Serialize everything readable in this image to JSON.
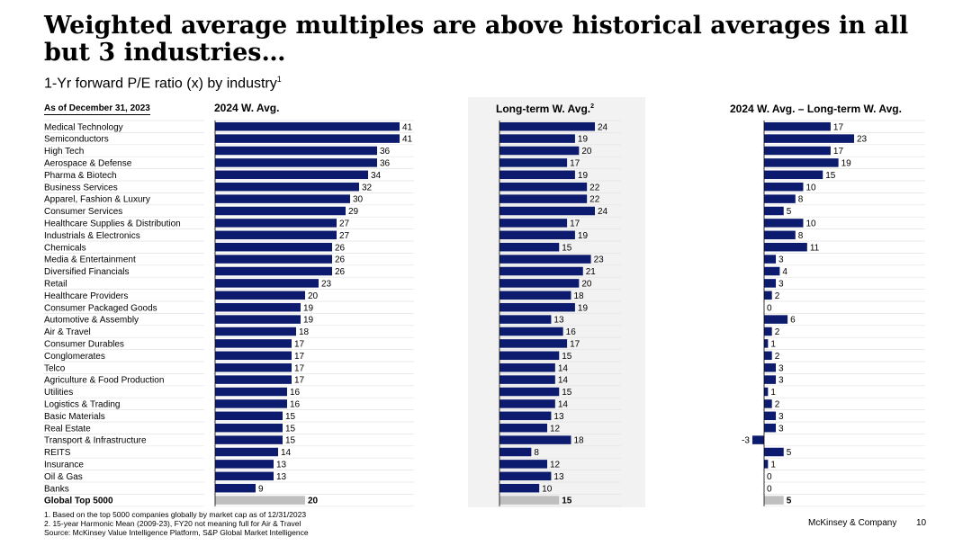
{
  "header": {
    "title": "Weighted average multiples are above historical averages in all but 3 industries…",
    "subtitle": "1-Yr forward P/E ratio (x) by industry",
    "subtitle_sup": "1",
    "as_of": "As of December 31, 2023"
  },
  "columns": {
    "col1": "2024 W. Avg.",
    "col2": "Long-term W. Avg.",
    "col2_sup": "2",
    "col3": "2024 W. Avg. – Long-term W. Avg."
  },
  "colors": {
    "bar": "#0d1b6e",
    "total": "#bfbfbf",
    "shade": "#f2f2f2"
  },
  "chart_data": {
    "type": "bar",
    "orientation": "horizontal",
    "categories": [
      "Medical Technology",
      "Semiconductors",
      "High Tech",
      "Aerospace & Defense",
      "Pharma & Biotech",
      "Business Services",
      "Apparel, Fashion & Luxury",
      "Consumer Services",
      "Healthcare Supplies & Distribution",
      "Industrials & Electronics",
      "Chemicals",
      "Media & Entertainment",
      "Diversified Financials",
      "Retail",
      "Healthcare Providers",
      "Consumer Packaged Goods",
      "Automotive & Assembly",
      "Air & Travel",
      "Consumer Durables",
      "Conglomerates",
      "Telco",
      "Agriculture & Food Production",
      "Utilities",
      "Logistics & Trading",
      "Basic Materials",
      "Real Estate",
      "Transport & Infrastructure",
      "REITS",
      "Insurance",
      "Oil & Gas",
      "Banks"
    ],
    "series": [
      {
        "name": "2024 W. Avg.",
        "values": [
          41,
          41,
          36,
          36,
          34,
          32,
          30,
          29,
          27,
          27,
          26,
          26,
          26,
          23,
          20,
          19,
          19,
          18,
          17,
          17,
          17,
          17,
          16,
          16,
          15,
          15,
          15,
          14,
          13,
          13,
          9
        ]
      },
      {
        "name": "Long-term W. Avg.",
        "values": [
          24,
          19,
          20,
          17,
          19,
          22,
          22,
          24,
          17,
          19,
          15,
          23,
          21,
          20,
          18,
          19,
          13,
          16,
          17,
          15,
          14,
          14,
          15,
          14,
          13,
          12,
          18,
          8,
          12,
          13,
          10
        ]
      },
      {
        "name": "2024 W. Avg. – Long-term W. Avg.",
        "values": [
          17,
          23,
          17,
          19,
          15,
          10,
          8,
          5,
          10,
          8,
          11,
          3,
          4,
          3,
          2,
          0,
          6,
          2,
          1,
          2,
          3,
          3,
          1,
          2,
          3,
          3,
          -3,
          5,
          1,
          0,
          0
        ]
      }
    ],
    "total": {
      "label": "Global Top 5000",
      "values": [
        20,
        15,
        5
      ]
    }
  },
  "footnotes": [
    "1. Based on the top 5000 companies globally by market cap as of 12/31/2023",
    "2. 15-year Harmonic Mean (2009-23), FY20 not meaning full for Air & Travel",
    "Source: McKinsey Value Intelligence Platform, S&P Global Market Intelligence"
  ],
  "footer": {
    "brand": "McKinsey & Company",
    "page": "10"
  }
}
